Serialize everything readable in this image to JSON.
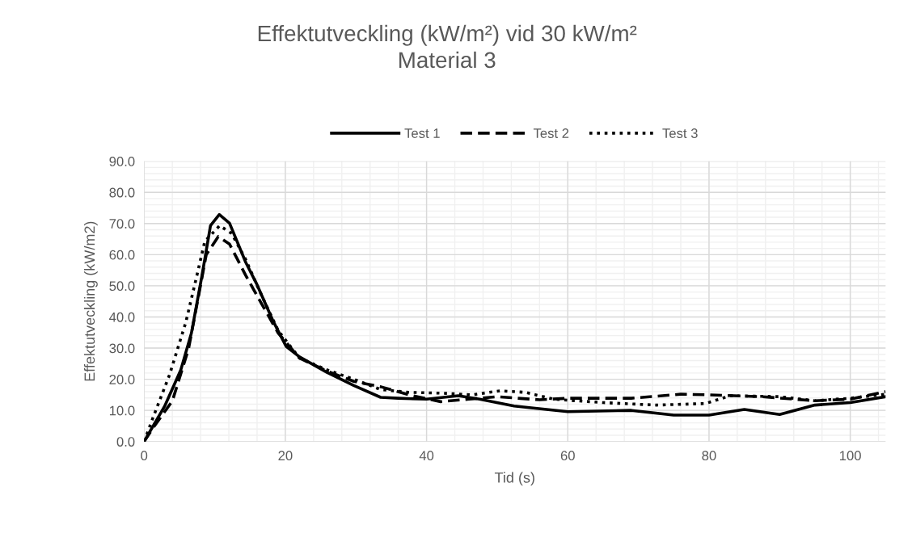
{
  "chart_data": {
    "type": "line",
    "title": "Effektutveckling (kW/m²) vid 30 kW/m²\nMaterial 3",
    "xlabel": "Tid (s)",
    "ylabel": "Effektutveckling (kW/m2)",
    "xlim": [
      0,
      105
    ],
    "xticks": [
      0,
      20,
      40,
      60,
      80,
      100
    ],
    "ylim": [
      0,
      90
    ],
    "yticks": [
      {
        "value": 0,
        "label": "0.0"
      },
      {
        "value": 10,
        "label": "10.0"
      },
      {
        "value": 20,
        "label": "20.0"
      },
      {
        "value": 30,
        "label": "30.0"
      },
      {
        "value": 40,
        "label": "40.0"
      },
      {
        "value": 50,
        "label": "50.0"
      },
      {
        "value": 60,
        "label": "60.0"
      },
      {
        "value": 70,
        "label": "70.0"
      },
      {
        "value": 80,
        "label": "80.0"
      },
      {
        "value": 90,
        "label": "90.0"
      }
    ],
    "grid": true,
    "legend": "top",
    "marker": "none",
    "series": [
      {
        "name": "Test 1",
        "color": "#000000",
        "line_style": "solid",
        "x": [
          0,
          2.9,
          5.2,
          6.7,
          8.2,
          9.4,
          10.65,
          12.1,
          14.4,
          15.9,
          18.2,
          20.1,
          22,
          25.9,
          29.7,
          33.5,
          36,
          40,
          44.5,
          47.5,
          52.4,
          60,
          69,
          75,
          80,
          85,
          90,
          95,
          100,
          105
        ],
        "values": [
          0,
          11.3,
          23,
          34.8,
          53.3,
          69.3,
          72.9,
          70.1,
          57.5,
          50.8,
          39,
          30.6,
          27.2,
          22.2,
          18,
          14.2,
          13.9,
          13.6,
          14.7,
          13.6,
          11.4,
          9.6,
          10,
          8.5,
          8.5,
          10.3,
          8.7,
          11.7,
          12.5,
          14.4
        ]
      },
      {
        "name": "Test 2",
        "color": "#000000",
        "line_style": "dashed",
        "x": [
          0,
          1.3,
          4,
          6.3,
          7.7,
          8.8,
          10.5,
          12.1,
          14.4,
          16.7,
          19,
          22,
          25.9,
          29.7,
          33.5,
          37.5,
          42,
          46,
          50,
          56,
          60,
          69,
          76,
          80,
          87.5,
          95,
          100,
          105
        ],
        "values": [
          0,
          4.5,
          13,
          29.8,
          46.6,
          60,
          65.8,
          63.4,
          53.3,
          44,
          34.8,
          26.8,
          22.6,
          19.3,
          17.6,
          15,
          12.8,
          13.6,
          14.4,
          13.4,
          13.9,
          13.9,
          15.2,
          15,
          14.4,
          13.1,
          13.6,
          16
        ]
      },
      {
        "name": "Test 3",
        "color": "#000000",
        "line_style": "dotted",
        "x": [
          0,
          1.3,
          3.6,
          5.9,
          7.3,
          8.6,
          10.7,
          12.4,
          14.4,
          16.7,
          19,
          22,
          25.9,
          29.7,
          33.5,
          37.5,
          42.5,
          46.5,
          50.4,
          54,
          58,
          65,
          72.5,
          79.5,
          83,
          90,
          95,
          100,
          105
        ],
        "values": [
          0,
          7.9,
          21.4,
          38.2,
          51.6,
          64.3,
          69.3,
          66.8,
          58.4,
          46.6,
          35.6,
          26.8,
          23,
          20,
          16.7,
          15.8,
          15.5,
          15,
          16.3,
          15.8,
          13.6,
          12.5,
          11.7,
          12.2,
          14.7,
          14.4,
          13.1,
          13.9,
          15.2
        ]
      }
    ]
  }
}
